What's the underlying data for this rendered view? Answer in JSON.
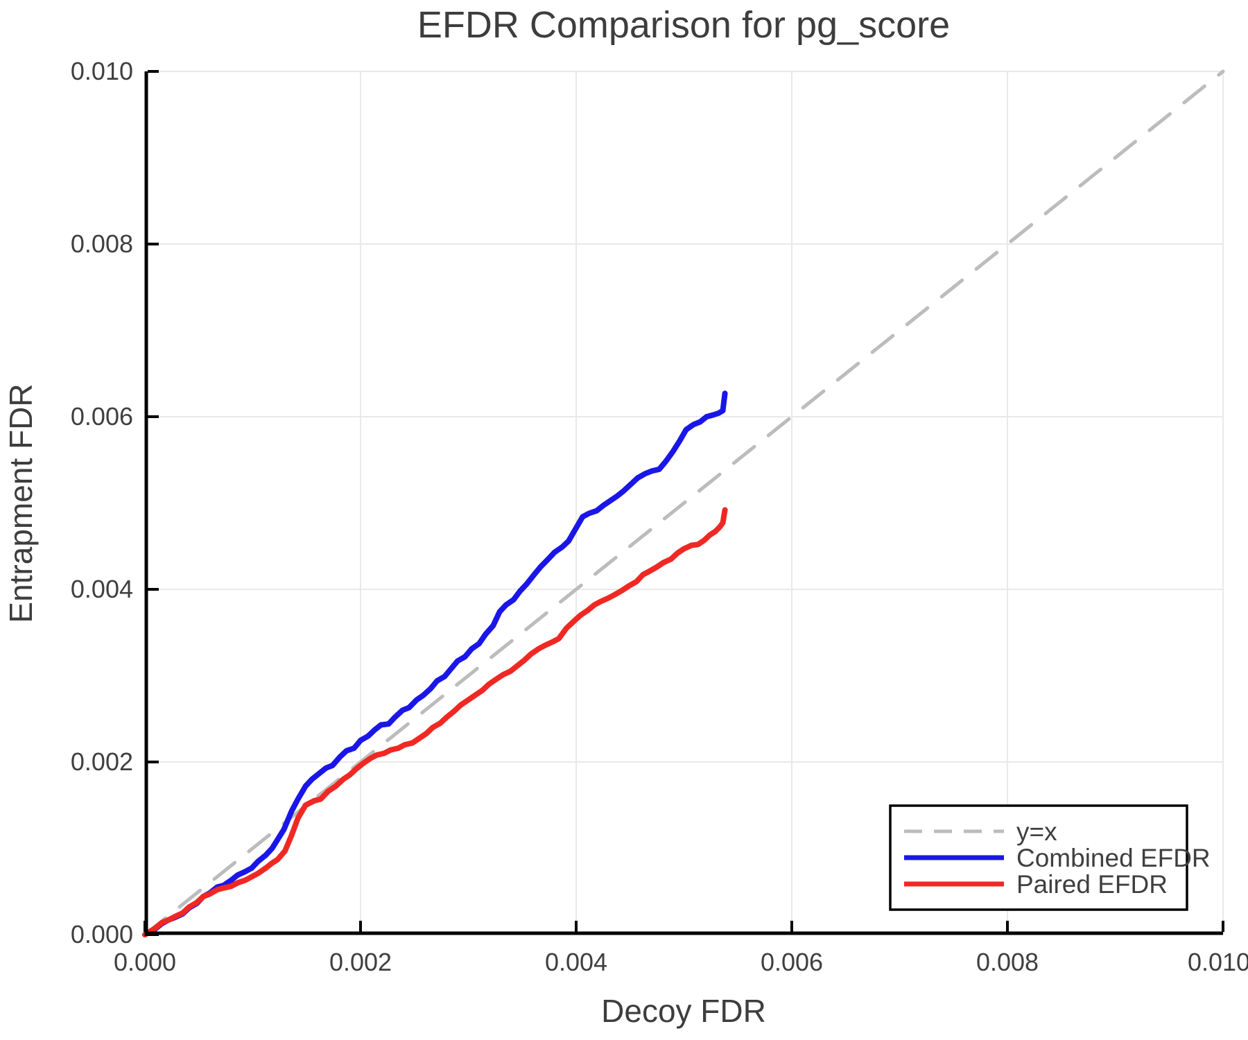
{
  "title": "EFDR Comparison for pg_score",
  "x_axis": {
    "label": "Decoy FDR",
    "ticks": [
      "0.000",
      "0.002",
      "0.004",
      "0.006",
      "0.008",
      "0.010"
    ],
    "range": [
      0,
      0.01
    ]
  },
  "y_axis": {
    "label": "Entrapment FDR",
    "ticks": [
      "0.000",
      "0.002",
      "0.004",
      "0.006",
      "0.008",
      "0.010"
    ],
    "range": [
      0,
      0.01
    ]
  },
  "legend": {
    "items": [
      {
        "label": "y=x",
        "color": "#bcbcbc",
        "dash": true
      },
      {
        "label": "Combined EFDR",
        "color": "#1a16e8",
        "dash": false
      },
      {
        "label": "Paired EFDR",
        "color": "#f02823",
        "dash": false
      }
    ]
  },
  "colors": {
    "title_text": "#3d3d3d",
    "axis_text": "#3f3f3f",
    "spine": "#000000",
    "grid": "#e9e9e9",
    "reference_line": "#bcbcbc",
    "combined_line": "#1a16e8",
    "paired_line": "#f02823",
    "legend_border": "#000000",
    "legend_bg": "#ffffff"
  },
  "chart_data": {
    "type": "line",
    "title": "EFDR Comparison for pg_score",
    "xlabel": "Decoy FDR",
    "ylabel": "Entrapment FDR",
    "xlim": [
      0,
      0.01
    ],
    "ylim": [
      0,
      0.01
    ],
    "grid": true,
    "legend_position": "lower right",
    "series": [
      {
        "name": "y=x",
        "style": "dashed",
        "color": "#bcbcbc",
        "points": [
          [
            0,
            0
          ],
          [
            0.01,
            0.01
          ]
        ]
      },
      {
        "name": "Combined EFDR",
        "style": "solid",
        "color": "#1a16e8",
        "points": [
          [
            0.0,
            0.0
          ],
          [
            9e-05,
            6e-05
          ],
          [
            0.00016,
            0.00013
          ],
          [
            0.00022,
            0.00017
          ],
          [
            0.00028,
            0.0002
          ],
          [
            0.00035,
            0.00024
          ],
          [
            0.00041,
            0.00031
          ],
          [
            0.00048,
            0.00036
          ],
          [
            0.00054,
            0.00044
          ],
          [
            0.0006,
            0.00048
          ],
          [
            0.00067,
            0.00055
          ],
          [
            0.00073,
            0.00057
          ],
          [
            0.0008,
            0.00063
          ],
          [
            0.00086,
            0.00069
          ],
          [
            0.00093,
            0.00073
          ],
          [
            0.00099,
            0.00077
          ],
          [
            0.00105,
            0.00085
          ],
          [
            0.00112,
            0.00092
          ],
          [
            0.00118,
            0.001
          ],
          [
            0.00123,
            0.0011
          ],
          [
            0.00129,
            0.00122
          ],
          [
            0.00136,
            0.00143
          ],
          [
            0.00142,
            0.00157
          ],
          [
            0.00149,
            0.00172
          ],
          [
            0.00155,
            0.0018
          ],
          [
            0.00161,
            0.00186
          ],
          [
            0.00168,
            0.00193
          ],
          [
            0.00174,
            0.00196
          ],
          [
            0.00181,
            0.00206
          ],
          [
            0.00187,
            0.00213
          ],
          [
            0.00194,
            0.00216
          ],
          [
            0.002,
            0.00225
          ],
          [
            0.00207,
            0.0023
          ],
          [
            0.00213,
            0.00237
          ],
          [
            0.00219,
            0.00243
          ],
          [
            0.00226,
            0.00244
          ],
          [
            0.00232,
            0.00252
          ],
          [
            0.00239,
            0.0026
          ],
          [
            0.00245,
            0.00263
          ],
          [
            0.00252,
            0.00272
          ],
          [
            0.00258,
            0.00277
          ],
          [
            0.00265,
            0.00285
          ],
          [
            0.00271,
            0.00294
          ],
          [
            0.00278,
            0.00299
          ],
          [
            0.00284,
            0.00308
          ],
          [
            0.0029,
            0.00317
          ],
          [
            0.00297,
            0.00322
          ],
          [
            0.00303,
            0.00331
          ],
          [
            0.0031,
            0.00337
          ],
          [
            0.00316,
            0.00348
          ],
          [
            0.00323,
            0.00358
          ],
          [
            0.00329,
            0.00374
          ],
          [
            0.00335,
            0.00382
          ],
          [
            0.00342,
            0.00388
          ],
          [
            0.00348,
            0.00398
          ],
          [
            0.00354,
            0.00406
          ],
          [
            0.00361,
            0.00417
          ],
          [
            0.00367,
            0.00426
          ],
          [
            0.00374,
            0.00435
          ],
          [
            0.0038,
            0.00443
          ],
          [
            0.00387,
            0.00449
          ],
          [
            0.00393,
            0.00456
          ],
          [
            0.00399,
            0.00469
          ],
          [
            0.00406,
            0.00484
          ],
          [
            0.00412,
            0.00488
          ],
          [
            0.00419,
            0.00491
          ],
          [
            0.00425,
            0.00497
          ],
          [
            0.00432,
            0.00503
          ],
          [
            0.00438,
            0.00508
          ],
          [
            0.00444,
            0.00514
          ],
          [
            0.00451,
            0.00522
          ],
          [
            0.00457,
            0.00529
          ],
          [
            0.00464,
            0.00534
          ],
          [
            0.0047,
            0.00537
          ],
          [
            0.00477,
            0.00539
          ],
          [
            0.00483,
            0.00548
          ],
          [
            0.0049,
            0.0056
          ],
          [
            0.00496,
            0.00572
          ],
          [
            0.00502,
            0.00585
          ],
          [
            0.00509,
            0.00591
          ],
          [
            0.00515,
            0.00594
          ],
          [
            0.00521,
            0.006
          ],
          [
            0.00527,
            0.00602
          ],
          [
            0.00532,
            0.00604
          ],
          [
            0.00536,
            0.00607
          ],
          [
            0.00538,
            0.00627
          ]
        ]
      },
      {
        "name": "Paired EFDR",
        "style": "solid",
        "color": "#f02823",
        "points": [
          [
            0.0,
            0.0
          ],
          [
            9e-05,
            7e-05
          ],
          [
            0.00016,
            0.00014
          ],
          [
            0.00022,
            0.00017
          ],
          [
            0.00028,
            0.00021
          ],
          [
            0.00035,
            0.00025
          ],
          [
            0.00041,
            0.00032
          ],
          [
            0.00048,
            0.00037
          ],
          [
            0.00054,
            0.00044
          ],
          [
            0.0006,
            0.00047
          ],
          [
            0.00067,
            0.00052
          ],
          [
            0.00073,
            0.00054
          ],
          [
            0.0008,
            0.00056
          ],
          [
            0.00086,
            0.0006
          ],
          [
            0.00093,
            0.00063
          ],
          [
            0.00099,
            0.00067
          ],
          [
            0.00105,
            0.00071
          ],
          [
            0.00112,
            0.00077
          ],
          [
            0.00118,
            0.00083
          ],
          [
            0.00123,
            0.00087
          ],
          [
            0.0013,
            0.00097
          ],
          [
            0.00136,
            0.00115
          ],
          [
            0.00142,
            0.00135
          ],
          [
            0.00149,
            0.0015
          ],
          [
            0.00157,
            0.00155
          ],
          [
            0.00163,
            0.00157
          ],
          [
            0.0017,
            0.00166
          ],
          [
            0.00177,
            0.00172
          ],
          [
            0.00184,
            0.0018
          ],
          [
            0.0019,
            0.00185
          ],
          [
            0.00196,
            0.00192
          ],
          [
            0.00202,
            0.00198
          ],
          [
            0.00209,
            0.00204
          ],
          [
            0.00215,
            0.00208
          ],
          [
            0.00222,
            0.0021
          ],
          [
            0.00228,
            0.00214
          ],
          [
            0.00235,
            0.00216
          ],
          [
            0.00241,
            0.0022
          ],
          [
            0.00248,
            0.00222
          ],
          [
            0.00254,
            0.00227
          ],
          [
            0.00261,
            0.00233
          ],
          [
            0.00267,
            0.0024
          ],
          [
            0.00274,
            0.00245
          ],
          [
            0.0028,
            0.00252
          ],
          [
            0.00287,
            0.00259
          ],
          [
            0.00293,
            0.00266
          ],
          [
            0.003,
            0.00272
          ],
          [
            0.00306,
            0.00277
          ],
          [
            0.00313,
            0.00283
          ],
          [
            0.00319,
            0.0029
          ],
          [
            0.00326,
            0.00296
          ],
          [
            0.00332,
            0.00301
          ],
          [
            0.00339,
            0.00305
          ],
          [
            0.00345,
            0.00311
          ],
          [
            0.00352,
            0.00318
          ],
          [
            0.00358,
            0.00325
          ],
          [
            0.00365,
            0.00331
          ],
          [
            0.00371,
            0.00335
          ],
          [
            0.00378,
            0.00339
          ],
          [
            0.00384,
            0.00343
          ],
          [
            0.00391,
            0.00355
          ],
          [
            0.00397,
            0.00362
          ],
          [
            0.00404,
            0.0037
          ],
          [
            0.0041,
            0.00375
          ],
          [
            0.00417,
            0.00382
          ],
          [
            0.00423,
            0.00386
          ],
          [
            0.0043,
            0.0039
          ],
          [
            0.00436,
            0.00394
          ],
          [
            0.00443,
            0.00399
          ],
          [
            0.00449,
            0.00404
          ],
          [
            0.00456,
            0.00409
          ],
          [
            0.00462,
            0.00417
          ],
          [
            0.00468,
            0.00421
          ],
          [
            0.00475,
            0.00426
          ],
          [
            0.00481,
            0.00431
          ],
          [
            0.00488,
            0.00435
          ],
          [
            0.00494,
            0.00442
          ],
          [
            0.005,
            0.00447
          ],
          [
            0.00507,
            0.00451
          ],
          [
            0.00513,
            0.00452
          ],
          [
            0.00519,
            0.00457
          ],
          [
            0.00524,
            0.00463
          ],
          [
            0.00529,
            0.00467
          ],
          [
            0.00533,
            0.00472
          ],
          [
            0.00536,
            0.00477
          ],
          [
            0.00538,
            0.00492
          ]
        ]
      }
    ]
  }
}
